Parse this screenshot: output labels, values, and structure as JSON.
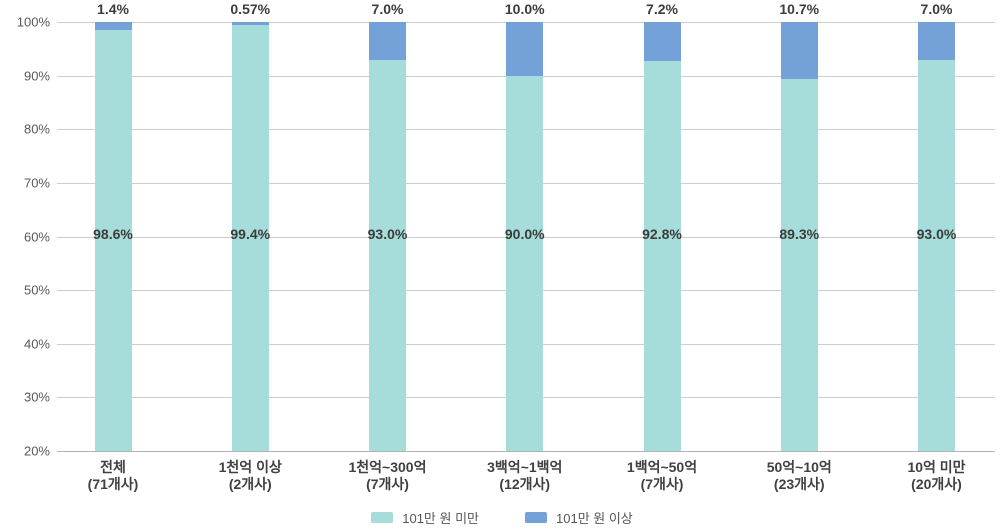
{
  "chart_data": {
    "type": "bar",
    "stacked": true,
    "title": "",
    "categories": [
      "전체",
      "1천억 이상",
      "1천억~300억",
      "3백억~1백억",
      "1백억~50억",
      "50억~10억",
      "10억 미만"
    ],
    "category_counts": [
      "(71개사)",
      "(2개사)",
      "(7개사)",
      "(12개사)",
      "(7개사)",
      "(23개사)",
      "(20개사)"
    ],
    "series": [
      {
        "name": "101만 원 미만",
        "color": "#a6dcd9",
        "values": [
          98.6,
          99.4,
          93.0,
          90.0,
          92.8,
          89.3,
          93.0
        ],
        "value_labels": [
          "98.6%",
          "99.4%",
          "93.0%",
          "90.0%",
          "92.8%",
          "89.3%",
          "93.0%"
        ]
      },
      {
        "name": "101만 원 이상",
        "color": "#74a2d8",
        "values": [
          1.4,
          0.57,
          7.0,
          10.0,
          7.2,
          10.7,
          7.0
        ],
        "value_labels": [
          "1.4%",
          "0.57%",
          "7.0%",
          "10.0%",
          "7.2%",
          "10.7%",
          "7.0%"
        ]
      }
    ],
    "ylim": [
      20,
      100
    ],
    "yticks": [
      "100%",
      "90%",
      "80%",
      "70%",
      "60%",
      "50%",
      "40%",
      "30%",
      "20%"
    ],
    "grid": true,
    "legend_position": "bottom"
  },
  "colors": {
    "gridline": "#cdcdcd",
    "baseline": "#b3b3b3",
    "value_text": "#3c3c3c",
    "axis_text": "#595959",
    "category_text": "#404040",
    "legend_text": "#565656"
  }
}
